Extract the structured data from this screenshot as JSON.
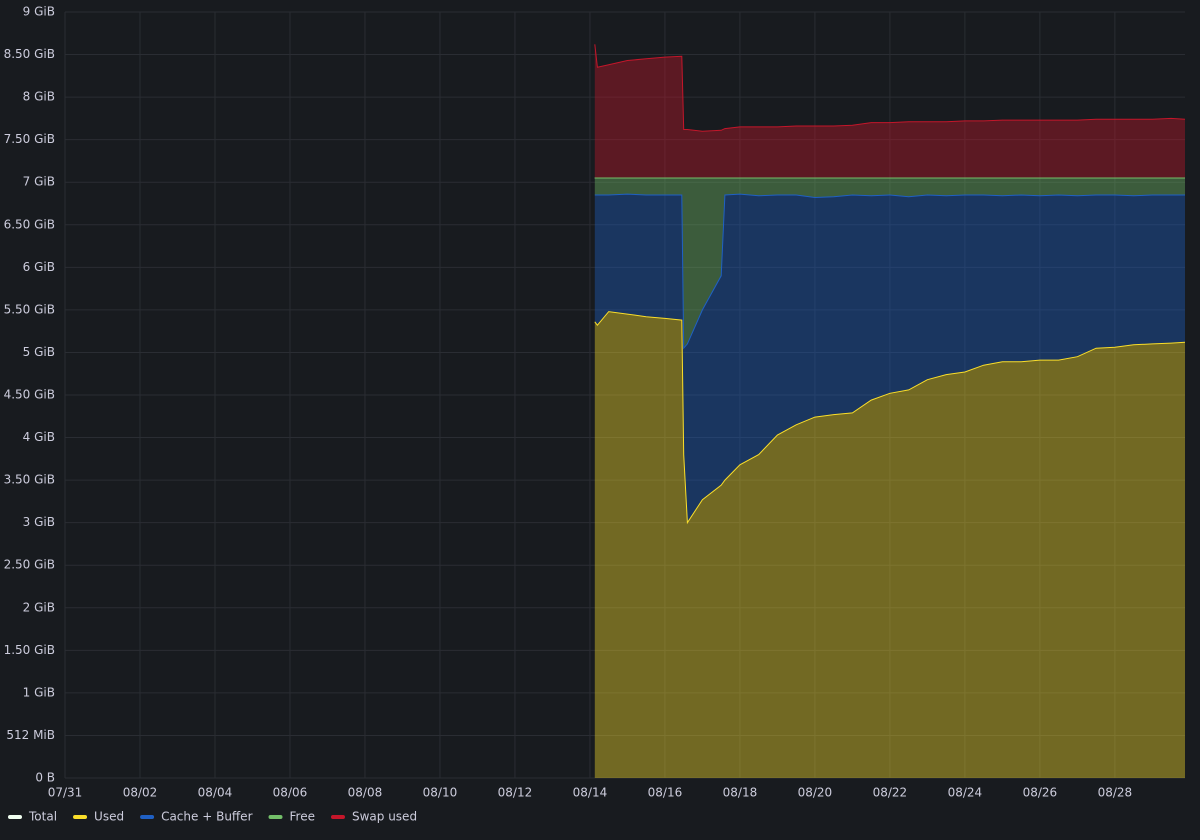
{
  "chart_data": {
    "type": "area",
    "stacking": "normal",
    "x": [
      14.13,
      14.2,
      14.5,
      15,
      15.5,
      16,
      16.45,
      16.5,
      16.6,
      17,
      17.5,
      17.6,
      18,
      18.5,
      19,
      19.5,
      20,
      20.5,
      21,
      21.5,
      22,
      22.5,
      23,
      23.5,
      24,
      24.5,
      25,
      25.5,
      26,
      26.5,
      27,
      27.5,
      28,
      28.5,
      29,
      29.5,
      29.87
    ],
    "series": [
      {
        "name": "Total",
        "color": "#f0fff0",
        "stack": false,
        "values": [
          7.05,
          7.05,
          7.05,
          7.05,
          7.05,
          7.05,
          7.05,
          7.05,
          7.05,
          7.05,
          7.05,
          7.05,
          7.05,
          7.05,
          7.05,
          7.05,
          7.05,
          7.05,
          7.05,
          7.05,
          7.05,
          7.05,
          7.05,
          7.05,
          7.05,
          7.05,
          7.05,
          7.05,
          7.05,
          7.05,
          7.05,
          7.05,
          7.05,
          7.05,
          7.05,
          7.05,
          7.05
        ]
      },
      {
        "name": "Used",
        "color": "#fade2a",
        "values": [
          5.36,
          5.32,
          5.48,
          5.45,
          5.42,
          5.4,
          5.38,
          3.8,
          3.0,
          3.27,
          3.44,
          3.5,
          3.68,
          3.8,
          4.03,
          4.15,
          4.24,
          4.27,
          4.29,
          4.44,
          4.52,
          4.56,
          4.68,
          4.74,
          4.77,
          4.85,
          4.89,
          4.89,
          4.91,
          4.91,
          4.95,
          5.05,
          5.06,
          5.09,
          5.1,
          5.11,
          5.12
        ]
      },
      {
        "name": "Cache + Buffer",
        "color": "#1f60c4",
        "values": [
          1.49,
          1.53,
          1.37,
          1.41,
          1.43,
          1.45,
          1.47,
          1.25,
          2.1,
          2.23,
          2.46,
          3.35,
          3.18,
          3.04,
          2.82,
          2.7,
          2.58,
          2.56,
          2.56,
          2.4,
          2.33,
          2.27,
          2.17,
          2.1,
          2.08,
          2.0,
          1.95,
          1.96,
          1.93,
          1.94,
          1.89,
          1.8,
          1.79,
          1.75,
          1.75,
          1.74,
          1.73
        ]
      },
      {
        "name": "Free",
        "color": "#73bf69",
        "values": [
          0.2,
          0.2,
          0.2,
          0.19,
          0.2,
          0.2,
          0.2,
          2.0,
          1.95,
          1.55,
          1.15,
          0.2,
          0.19,
          0.21,
          0.2,
          0.2,
          0.23,
          0.22,
          0.2,
          0.21,
          0.2,
          0.22,
          0.2,
          0.21,
          0.2,
          0.2,
          0.21,
          0.2,
          0.21,
          0.2,
          0.21,
          0.2,
          0.2,
          0.21,
          0.2,
          0.2,
          0.2
        ]
      },
      {
        "name": "Swap used",
        "color": "#c4162a",
        "values": [
          1.57,
          1.3,
          1.33,
          1.38,
          1.4,
          1.42,
          1.43,
          0.57,
          0.57,
          0.55,
          0.56,
          0.58,
          0.6,
          0.6,
          0.6,
          0.61,
          0.61,
          0.61,
          0.62,
          0.65,
          0.65,
          0.66,
          0.66,
          0.66,
          0.67,
          0.67,
          0.68,
          0.68,
          0.68,
          0.68,
          0.68,
          0.69,
          0.69,
          0.69,
          0.69,
          0.7,
          0.69
        ]
      }
    ],
    "xlim": [
      0,
      29.87
    ],
    "xticks": [
      {
        "value": 0,
        "label": "07/31"
      },
      {
        "value": 2,
        "label": "08/02"
      },
      {
        "value": 4,
        "label": "08/04"
      },
      {
        "value": 6,
        "label": "08/06"
      },
      {
        "value": 8,
        "label": "08/08"
      },
      {
        "value": 10,
        "label": "08/10"
      },
      {
        "value": 12,
        "label": "08/12"
      },
      {
        "value": 14,
        "label": "08/14"
      },
      {
        "value": 16,
        "label": "08/16"
      },
      {
        "value": 18,
        "label": "08/18"
      },
      {
        "value": 20,
        "label": "08/20"
      },
      {
        "value": 22,
        "label": "08/22"
      },
      {
        "value": 24,
        "label": "08/24"
      },
      {
        "value": 26,
        "label": "08/26"
      },
      {
        "value": 28,
        "label": "08/28"
      }
    ],
    "ylim": [
      0,
      9
    ],
    "yticks": [
      {
        "value": 0,
        "label": "0 B"
      },
      {
        "value": 0.5,
        "label": "512 MiB"
      },
      {
        "value": 1,
        "label": "1 GiB"
      },
      {
        "value": 1.5,
        "label": "1.50 GiB"
      },
      {
        "value": 2,
        "label": "2 GiB"
      },
      {
        "value": 2.5,
        "label": "2.50 GiB"
      },
      {
        "value": 3,
        "label": "3 GiB"
      },
      {
        "value": 3.5,
        "label": "3.50 GiB"
      },
      {
        "value": 4,
        "label": "4 GiB"
      },
      {
        "value": 4.5,
        "label": "4.50 GiB"
      },
      {
        "value": 5,
        "label": "5 GiB"
      },
      {
        "value": 5.5,
        "label": "5.50 GiB"
      },
      {
        "value": 6,
        "label": "6 GiB"
      },
      {
        "value": 6.5,
        "label": "6.50 GiB"
      },
      {
        "value": 7,
        "label": "7 GiB"
      },
      {
        "value": 7.5,
        "label": "7.50 GiB"
      },
      {
        "value": 8,
        "label": "8 GiB"
      },
      {
        "value": 8.5,
        "label": "8.50 GiB"
      },
      {
        "value": 9,
        "label": "9 GiB"
      }
    ],
    "grid": true,
    "legend": "bottom-left"
  }
}
